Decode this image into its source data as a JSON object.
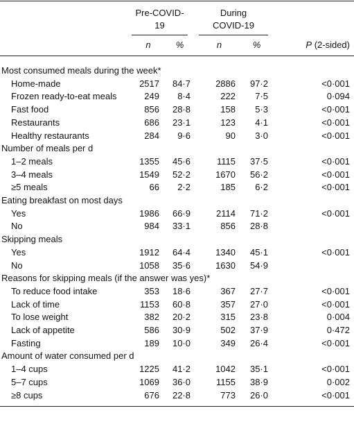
{
  "header": {
    "groups": [
      "Pre-COVID-19",
      "During COVID-19"
    ],
    "columns": [
      "n",
      "%",
      "n",
      "%",
      "P (2-sided)"
    ]
  },
  "sections": [
    {
      "title": "Most consumed meals during the week*",
      "rows": [
        {
          "label": "Home-made",
          "values": [
            "2517",
            "84·7",
            "2886",
            "97·2",
            "<0·001"
          ]
        },
        {
          "label": "Frozen ready-to-eat meals",
          "values": [
            "249",
            "8·4",
            "222",
            "7·5",
            "0·094"
          ]
        },
        {
          "label": "Fast food",
          "values": [
            "856",
            "28·8",
            "158",
            "5·3",
            "<0·001"
          ]
        },
        {
          "label": "Restaurants",
          "values": [
            "686",
            "23·1",
            "123",
            "4·1",
            "<0·001"
          ]
        },
        {
          "label": "Healthy restaurants",
          "values": [
            "284",
            "9·6",
            "90",
            "3·0",
            "<0·001"
          ]
        }
      ]
    },
    {
      "title": "Number of meals per d",
      "rows": [
        {
          "label": "1–2 meals",
          "values": [
            "1355",
            "45·6",
            "1115",
            "37·5",
            "<0·001"
          ]
        },
        {
          "label": "3–4 meals",
          "values": [
            "1549",
            "52·2",
            "1670",
            "56·2",
            "<0·001"
          ]
        },
        {
          "label": "≥5 meals",
          "values": [
            "66",
            "2·2",
            "185",
            "6·2",
            "<0·001"
          ]
        }
      ]
    },
    {
      "title": "Eating breakfast on most days",
      "rows": [
        {
          "label": "Yes",
          "values": [
            "1986",
            "66·9",
            "2114",
            "71·2",
            "<0·001"
          ]
        },
        {
          "label": "No",
          "values": [
            "984",
            "33·1",
            "856",
            "28·8",
            null
          ]
        }
      ]
    },
    {
      "title": "Skipping meals",
      "rows": [
        {
          "label": "Yes",
          "values": [
            "1912",
            "64·4",
            "1340",
            "45·1",
            "<0·001"
          ]
        },
        {
          "label": "No",
          "values": [
            "1058",
            "35·6",
            "1630",
            "54·9",
            null
          ]
        }
      ]
    },
    {
      "title": "Reasons for skipping meals (if the answer was yes)*",
      "rows": [
        {
          "label": "To reduce food intake",
          "values": [
            "353",
            "18·6",
            "367",
            "27·7",
            "<0·001"
          ]
        },
        {
          "label": "Lack of time",
          "values": [
            "1153",
            "60·8",
            "357",
            "27·0",
            "<0·001"
          ]
        },
        {
          "label": "To lose weight",
          "values": [
            "382",
            "20·2",
            "315",
            "23·8",
            "0·004"
          ]
        },
        {
          "label": "Lack of appetite",
          "values": [
            "586",
            "30·9",
            "502",
            "37·9",
            "0·472"
          ]
        },
        {
          "label": "Fasting",
          "values": [
            "189",
            "10·0",
            "349",
            "26·4",
            "<0·001"
          ]
        }
      ]
    },
    {
      "title": "Amount of water consumed per d",
      "rows": [
        {
          "label": "1–4 cups",
          "values": [
            "1225",
            "41·2",
            "1042",
            "35·1",
            "<0·001"
          ]
        },
        {
          "label": "5–7 cups",
          "values": [
            "1069",
            "36·0",
            "1155",
            "38·9",
            "0·002"
          ]
        },
        {
          "label": "≥8 cups",
          "values": [
            "676",
            "22·8",
            "773",
            "26·0",
            "<0·001"
          ]
        }
      ]
    }
  ]
}
